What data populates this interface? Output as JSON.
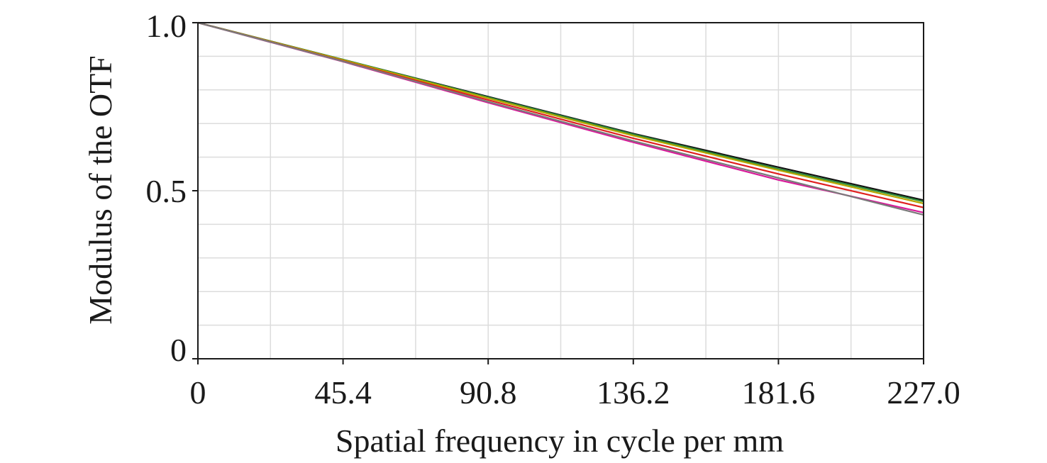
{
  "chart_data": {
    "type": "line",
    "xlabel": "Spatial frequency in cycle per mm",
    "ylabel": "Modulus of the OTF",
    "xlim": [
      0,
      227.0
    ],
    "ylim": [
      0,
      1.0
    ],
    "x_ticks": [
      "0",
      "45.4",
      "90.8",
      "136.2",
      "181.6",
      "227.0"
    ],
    "x_tick_values": [
      0,
      45.4,
      90.8,
      136.2,
      181.6,
      227.0
    ],
    "y_ticks": [
      "0",
      "0.5",
      "1.0"
    ],
    "y_tick_values": [
      0,
      0.5,
      1.0
    ],
    "grid": true,
    "legend": "none",
    "x": [
      0,
      45.4,
      90.8,
      136.2,
      181.6,
      227.0
    ],
    "series": [
      {
        "color": "#111111",
        "values": [
          1.0,
          0.89,
          0.78,
          0.67,
          0.57,
          0.472
        ]
      },
      {
        "color": "#2e8b3a",
        "values": [
          1.0,
          0.89,
          0.778,
          0.668,
          0.565,
          0.468
        ]
      },
      {
        "color": "#b5a600",
        "values": [
          1.0,
          0.889,
          0.775,
          0.664,
          0.561,
          0.462
        ]
      },
      {
        "color": "#e02020",
        "values": [
          1.0,
          0.886,
          0.77,
          0.656,
          0.55,
          0.45
        ]
      },
      {
        "color": "#d81b9a",
        "values": [
          1.0,
          0.884,
          0.762,
          0.644,
          0.532,
          0.435
        ]
      },
      {
        "color": "#7a7a7a",
        "values": [
          1.0,
          0.885,
          0.765,
          0.648,
          0.538,
          0.428
        ]
      }
    ]
  }
}
